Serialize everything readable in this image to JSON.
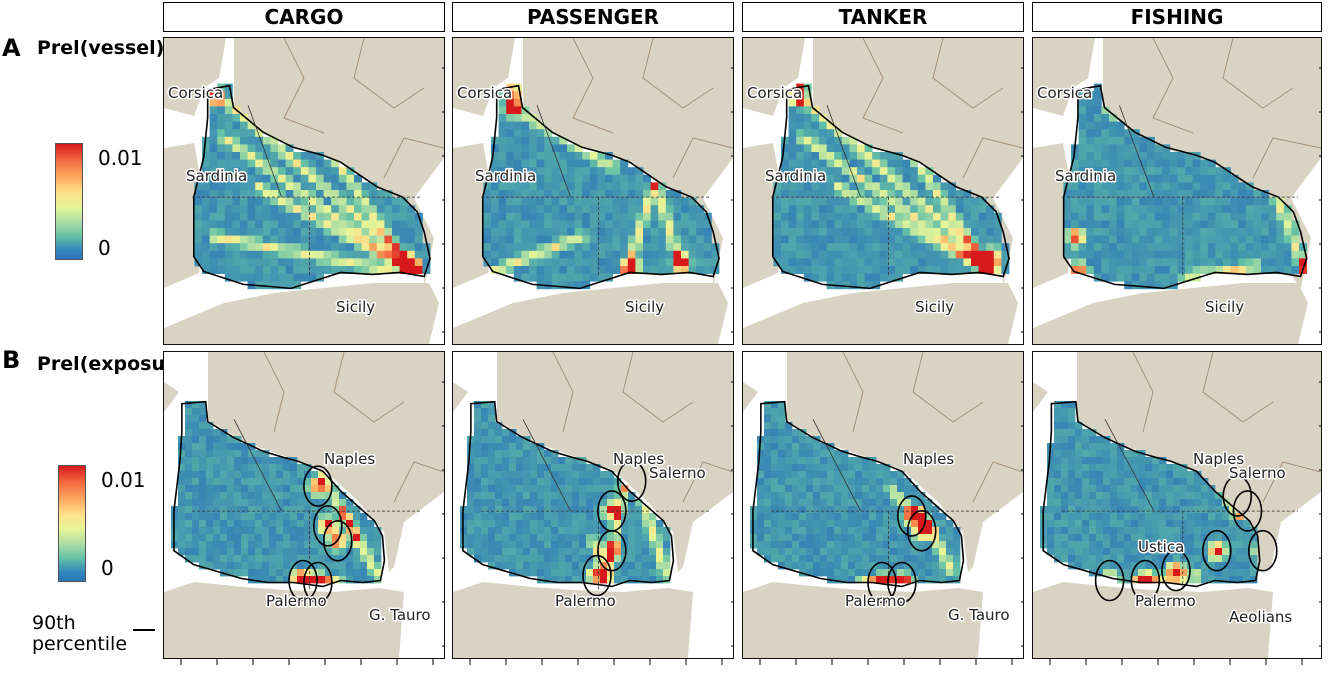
{
  "columns": [
    {
      "key": "cargo",
      "label": "CARGO"
    },
    {
      "key": "passenger",
      "label": "PASSENGER"
    },
    {
      "key": "tanker",
      "label": "TANKER"
    },
    {
      "key": "fishing",
      "label": "FISHING"
    }
  ],
  "rows": [
    {
      "letter": "A",
      "title": "Prel(vessel)",
      "colorbar": {
        "max": "0.01",
        "min": "0"
      }
    },
    {
      "letter": "B",
      "title": "Prel(exposure)",
      "colorbar": {
        "max": "0.01",
        "min": "0"
      }
    }
  ],
  "legend": {
    "contour_label": "90th\npercentile"
  },
  "places_row_a": [
    "Corsica",
    "Sardinia",
    "Sicily"
  ],
  "places_row_b": {
    "cargo": [
      "Naples",
      "Palermo",
      "G. Tauro"
    ],
    "passenger": [
      "Naples",
      "Salerno",
      "Palermo"
    ],
    "tanker": [
      "Naples",
      "Palermo",
      "G. Tauro"
    ],
    "fishing": [
      "Naples",
      "Salerno",
      "Ustica",
      "Palermo",
      "Aeolians"
    ]
  },
  "colors": {
    "land": "#d9d3c3",
    "sea": "#ffffff",
    "low": "#2b74b8",
    "high": "#d7191c",
    "contour": "#000000"
  }
}
